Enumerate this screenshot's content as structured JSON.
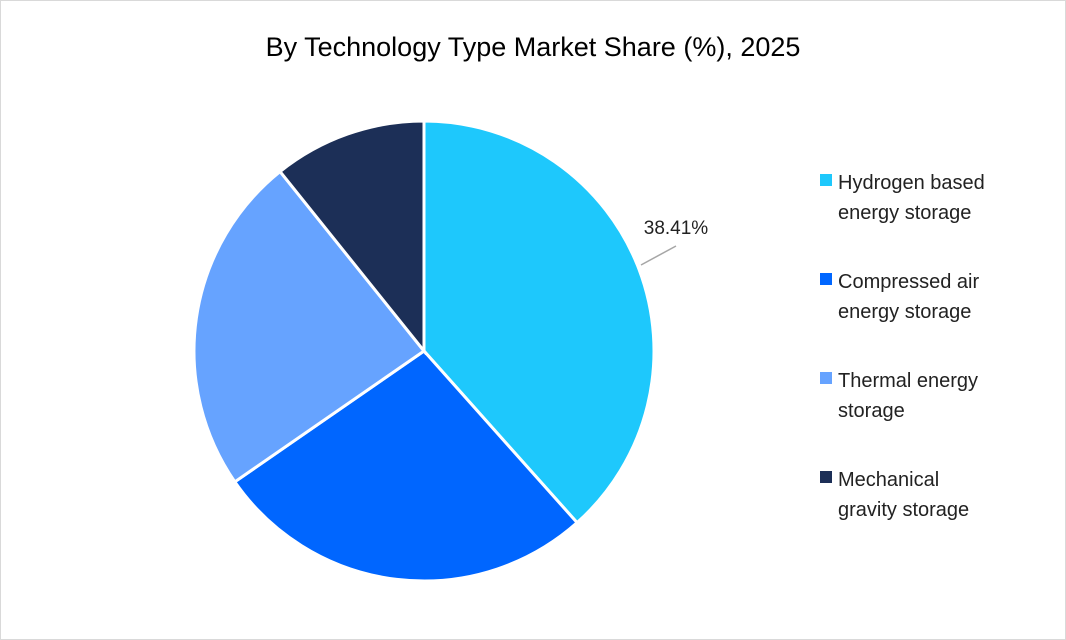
{
  "chart_data": {
    "type": "pie",
    "title": "By Technology Type Market Share (%), 2025",
    "categories": [
      "Hydrogen based energy storage",
      "Compressed air energy storage",
      "Thermal energy storage",
      "Mechanical gravity storage"
    ],
    "values": [
      38.41,
      26.96,
      23.87,
      10.76
    ],
    "colors": [
      "#1EC8FC",
      "#0066FF",
      "#66A3FF",
      "#1C2F57"
    ],
    "data_labels": [
      "38.41%",
      "",
      "",
      ""
    ],
    "legend": {
      "position": "right",
      "entries": [
        {
          "line1": "Hydrogen based",
          "line2": "energy storage"
        },
        {
          "line1": "Compressed air",
          "line2": "energy storage"
        },
        {
          "line1": "Thermal energy",
          "line2": "storage"
        },
        {
          "line1": "Mechanical",
          "line2": "gravity storage"
        }
      ]
    }
  }
}
